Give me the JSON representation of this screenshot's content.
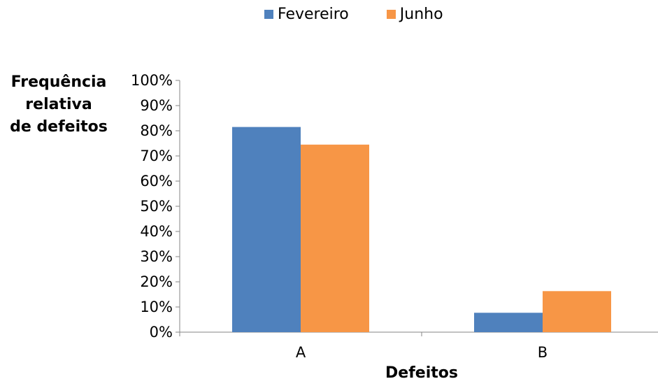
{
  "chart_data": {
    "type": "bar",
    "categories": [
      "A",
      "B"
    ],
    "series": [
      {
        "name": "Fevereiro",
        "values": [
          0.815,
          0.077
        ],
        "color": "#4F81BD"
      },
      {
        "name": "Junho",
        "values": [
          0.745,
          0.163
        ],
        "color": "#F79646"
      }
    ],
    "ylim": [
      0,
      1
    ],
    "yticks": [
      "0%",
      "10%",
      "20%",
      "30%",
      "40%",
      "50%",
      "60%",
      "70%",
      "80%",
      "90%",
      "100%"
    ],
    "xlabel": "Defeitos",
    "ylabel": "Frequência\nrelativa\nde defeitos",
    "legend_position": "top",
    "grid": false
  }
}
